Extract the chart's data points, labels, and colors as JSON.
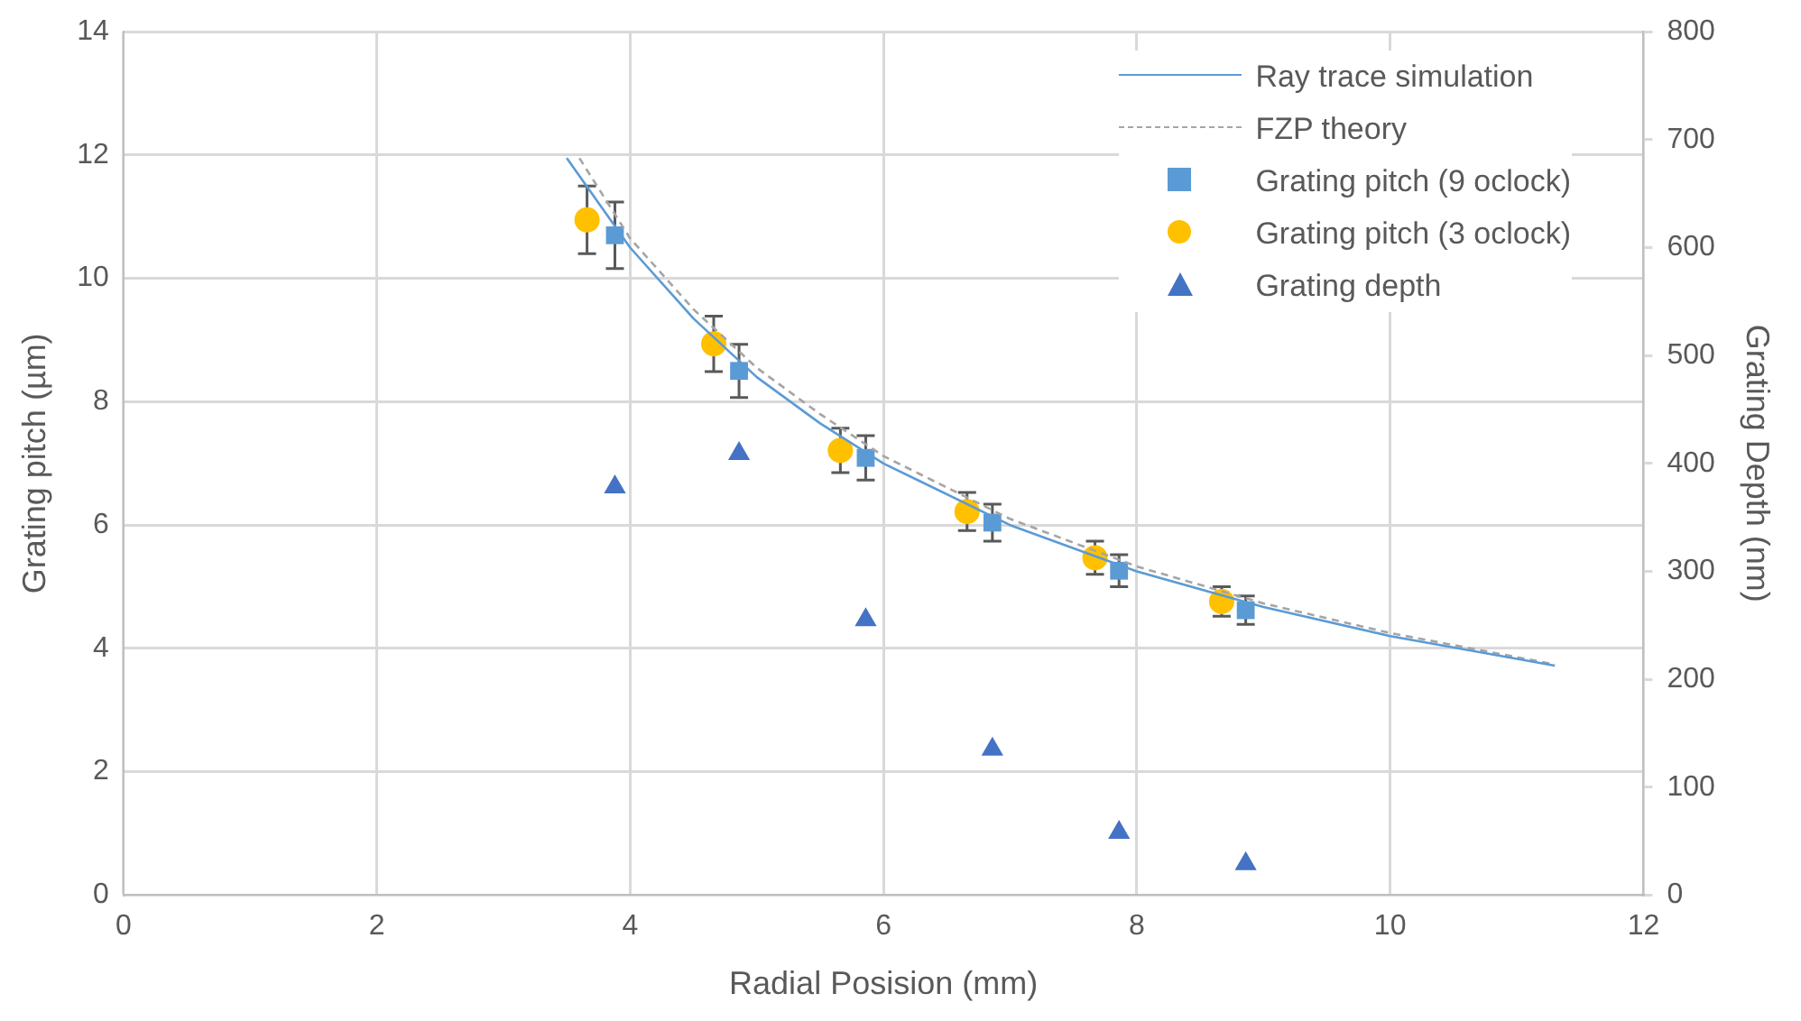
{
  "chart_data": {
    "type": "scatter",
    "xlabel": "Radial Posision (mm)",
    "ylabel": "Grating pitch (µm)",
    "y2label": "Grating Depth (nm)",
    "xlim": [
      0,
      12
    ],
    "xticks": [
      0,
      2,
      4,
      6,
      8,
      10,
      12
    ],
    "ylim": [
      0,
      14
    ],
    "yticks": [
      0,
      2,
      4,
      6,
      8,
      10,
      12,
      14
    ],
    "y2lim": [
      0,
      800
    ],
    "y2ticks": [
      0,
      100,
      200,
      300,
      400,
      500,
      600,
      700,
      800
    ],
    "grid": true,
    "legend": "top right",
    "series": [
      {
        "name": "Ray trace simulation",
        "type": "line",
        "color": "#5b9bd5",
        "line_style": "solid",
        "marker": "none",
        "x": [
          3.5,
          4,
          4.5,
          5,
          5.5,
          6,
          7,
          8,
          9,
          10,
          11.3
        ],
        "values": [
          11.95,
          10.5,
          9.35,
          8.4,
          7.65,
          7.0,
          6.0,
          5.25,
          4.67,
          4.2,
          3.72
        ]
      },
      {
        "name": "FZP theory",
        "type": "line",
        "color": "#a5a5a5",
        "line_style": "dashed",
        "marker": "none",
        "x": [
          3.6,
          4,
          4.5,
          5,
          5.5,
          6,
          7,
          8,
          9,
          10,
          11.3
        ],
        "values": [
          11.95,
          10.65,
          9.5,
          8.55,
          7.8,
          7.12,
          6.1,
          5.33,
          4.73,
          4.25,
          3.74
        ]
      },
      {
        "name": "Grating pitch (9 oclock)",
        "type": "scatter",
        "color": "#5b9bd5",
        "marker": "square",
        "x": [
          3.88,
          4.86,
          5.86,
          6.86,
          7.86,
          8.86
        ],
        "values": [
          10.7,
          8.5,
          7.09,
          6.04,
          5.26,
          4.62
        ],
        "errors": [
          0.54,
          0.43,
          0.36,
          0.3,
          0.26,
          0.23
        ]
      },
      {
        "name": "Grating pitch (3 oclock)",
        "type": "scatter",
        "color": "#ffc000",
        "marker": "circle",
        "x": [
          3.66,
          4.66,
          5.66,
          6.66,
          7.67,
          8.67
        ],
        "values": [
          10.95,
          8.94,
          7.21,
          6.22,
          5.47,
          4.76
        ],
        "errors": [
          0.55,
          0.45,
          0.36,
          0.31,
          0.27,
          0.24
        ]
      },
      {
        "name": "Grating depth",
        "type": "scatter",
        "axis": "y2",
        "color": "#4472c4",
        "marker": "triangle",
        "x": [
          3.88,
          4.86,
          5.86,
          6.86,
          7.86,
          8.86
        ],
        "values": [
          378,
          409,
          255,
          135,
          58,
          29
        ]
      }
    ]
  }
}
